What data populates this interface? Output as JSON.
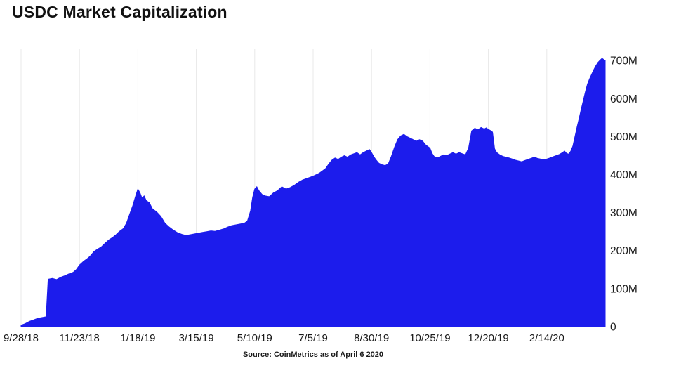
{
  "chart_data": {
    "type": "area",
    "title": "USDC Market Capitalization",
    "source": "Source: CoinMetrics as of April 6 2020",
    "xlabel": "",
    "ylabel": "",
    "xlim": [
      0,
      560
    ],
    "ylim": [
      0,
      730
    ],
    "x_unit": "days since 9/28/18",
    "y_unit": "USD millions",
    "grid": "vertical-only",
    "legend": "none",
    "x_tick_days": [
      0,
      56,
      112,
      168,
      224,
      280,
      336,
      392,
      448,
      504
    ],
    "x_tick_labels": [
      "9/28/18",
      "11/23/18",
      "1/18/19",
      "3/15/19",
      "5/10/19",
      "7/5/19",
      "8/30/19",
      "10/25/19",
      "12/20/19",
      "2/14/20"
    ],
    "y_ticks": [
      0,
      100,
      200,
      300,
      400,
      500,
      600,
      700
    ],
    "y_tick_labels": [
      "0",
      "100M",
      "200M",
      "300M",
      "400M",
      "500M",
      "600M",
      "700M"
    ],
    "colors": {
      "area": "#1c1cec",
      "grid": "#e8e8e8",
      "text": "#1a1a1a",
      "background": "#ffffff"
    },
    "points": [
      [
        0,
        4
      ],
      [
        4,
        8
      ],
      [
        8,
        14
      ],
      [
        12,
        18
      ],
      [
        16,
        22
      ],
      [
        20,
        24
      ],
      [
        24,
        26
      ],
      [
        26,
        125
      ],
      [
        30,
        127
      ],
      [
        34,
        124
      ],
      [
        38,
        130
      ],
      [
        42,
        134
      ],
      [
        46,
        139
      ],
      [
        50,
        143
      ],
      [
        53,
        150
      ],
      [
        56,
        162
      ],
      [
        60,
        172
      ],
      [
        63,
        178
      ],
      [
        66,
        185
      ],
      [
        70,
        198
      ],
      [
        74,
        205
      ],
      [
        77,
        210
      ],
      [
        80,
        218
      ],
      [
        84,
        228
      ],
      [
        88,
        235
      ],
      [
        91,
        242
      ],
      [
        94,
        250
      ],
      [
        98,
        258
      ],
      [
        101,
        272
      ],
      [
        104,
        295
      ],
      [
        107,
        318
      ],
      [
        110,
        345
      ],
      [
        112,
        362
      ],
      [
        114,
        352
      ],
      [
        116,
        338
      ],
      [
        118,
        344
      ],
      [
        120,
        332
      ],
      [
        123,
        326
      ],
      [
        126,
        310
      ],
      [
        130,
        302
      ],
      [
        134,
        290
      ],
      [
        138,
        272
      ],
      [
        142,
        262
      ],
      [
        146,
        254
      ],
      [
        150,
        247
      ],
      [
        154,
        243
      ],
      [
        158,
        240
      ],
      [
        162,
        242
      ],
      [
        166,
        244
      ],
      [
        170,
        246
      ],
      [
        174,
        248
      ],
      [
        178,
        250
      ],
      [
        182,
        252
      ],
      [
        186,
        251
      ],
      [
        190,
        254
      ],
      [
        194,
        257
      ],
      [
        198,
        262
      ],
      [
        202,
        266
      ],
      [
        206,
        268
      ],
      [
        210,
        270
      ],
      [
        214,
        272
      ],
      [
        217,
        278
      ],
      [
        220,
        305
      ],
      [
        222,
        340
      ],
      [
        224,
        362
      ],
      [
        226,
        368
      ],
      [
        228,
        358
      ],
      [
        231,
        348
      ],
      [
        234,
        344
      ],
      [
        238,
        342
      ],
      [
        242,
        352
      ],
      [
        246,
        358
      ],
      [
        250,
        368
      ],
      [
        254,
        362
      ],
      [
        258,
        366
      ],
      [
        262,
        372
      ],
      [
        266,
        380
      ],
      [
        270,
        386
      ],
      [
        274,
        390
      ],
      [
        278,
        394
      ],
      [
        280,
        396
      ],
      [
        283,
        400
      ],
      [
        286,
        404
      ],
      [
        289,
        410
      ],
      [
        292,
        416
      ],
      [
        295,
        428
      ],
      [
        298,
        438
      ],
      [
        301,
        444
      ],
      [
        304,
        440
      ],
      [
        307,
        446
      ],
      [
        310,
        450
      ],
      [
        313,
        446
      ],
      [
        316,
        452
      ],
      [
        319,
        455
      ],
      [
        322,
        458
      ],
      [
        325,
        452
      ],
      [
        328,
        458
      ],
      [
        331,
        462
      ],
      [
        334,
        466
      ],
      [
        336,
        458
      ],
      [
        338,
        448
      ],
      [
        340,
        440
      ],
      [
        343,
        430
      ],
      [
        346,
        426
      ],
      [
        349,
        424
      ],
      [
        352,
        428
      ],
      [
        355,
        448
      ],
      [
        358,
        472
      ],
      [
        361,
        492
      ],
      [
        364,
        502
      ],
      [
        367,
        506
      ],
      [
        370,
        500
      ],
      [
        373,
        496
      ],
      [
        376,
        492
      ],
      [
        379,
        488
      ],
      [
        382,
        492
      ],
      [
        385,
        488
      ],
      [
        388,
        478
      ],
      [
        392,
        470
      ],
      [
        394,
        456
      ],
      [
        396,
        448
      ],
      [
        399,
        444
      ],
      [
        402,
        448
      ],
      [
        405,
        452
      ],
      [
        408,
        450
      ],
      [
        411,
        454
      ],
      [
        414,
        458
      ],
      [
        417,
        454
      ],
      [
        420,
        458
      ],
      [
        423,
        455
      ],
      [
        426,
        452
      ],
      [
        429,
        470
      ],
      [
        432,
        515
      ],
      [
        435,
        522
      ],
      [
        438,
        518
      ],
      [
        441,
        524
      ],
      [
        444,
        520
      ],
      [
        446,
        523
      ],
      [
        448,
        519
      ],
      [
        450,
        516
      ],
      [
        452,
        512
      ],
      [
        454,
        468
      ],
      [
        456,
        458
      ],
      [
        459,
        452
      ],
      [
        462,
        448
      ],
      [
        465,
        446
      ],
      [
        468,
        444
      ],
      [
        471,
        441
      ],
      [
        474,
        438
      ],
      [
        477,
        436
      ],
      [
        480,
        434
      ],
      [
        483,
        437
      ],
      [
        486,
        440
      ],
      [
        489,
        443
      ],
      [
        492,
        446
      ],
      [
        495,
        443
      ],
      [
        498,
        441
      ],
      [
        501,
        439
      ],
      [
        504,
        441
      ],
      [
        507,
        444
      ],
      [
        510,
        447
      ],
      [
        513,
        450
      ],
      [
        516,
        453
      ],
      [
        519,
        458
      ],
      [
        521,
        462
      ],
      [
        523,
        456
      ],
      [
        525,
        454
      ],
      [
        527,
        462
      ],
      [
        529,
        475
      ],
      [
        531,
        500
      ],
      [
        533,
        525
      ],
      [
        535,
        548
      ],
      [
        537,
        572
      ],
      [
        539,
        595
      ],
      [
        541,
        618
      ],
      [
        543,
        638
      ],
      [
        545,
        652
      ],
      [
        547,
        664
      ],
      [
        549,
        676
      ],
      [
        551,
        686
      ],
      [
        553,
        695
      ],
      [
        555,
        701
      ],
      [
        557,
        706
      ],
      [
        560,
        700
      ]
    ]
  }
}
